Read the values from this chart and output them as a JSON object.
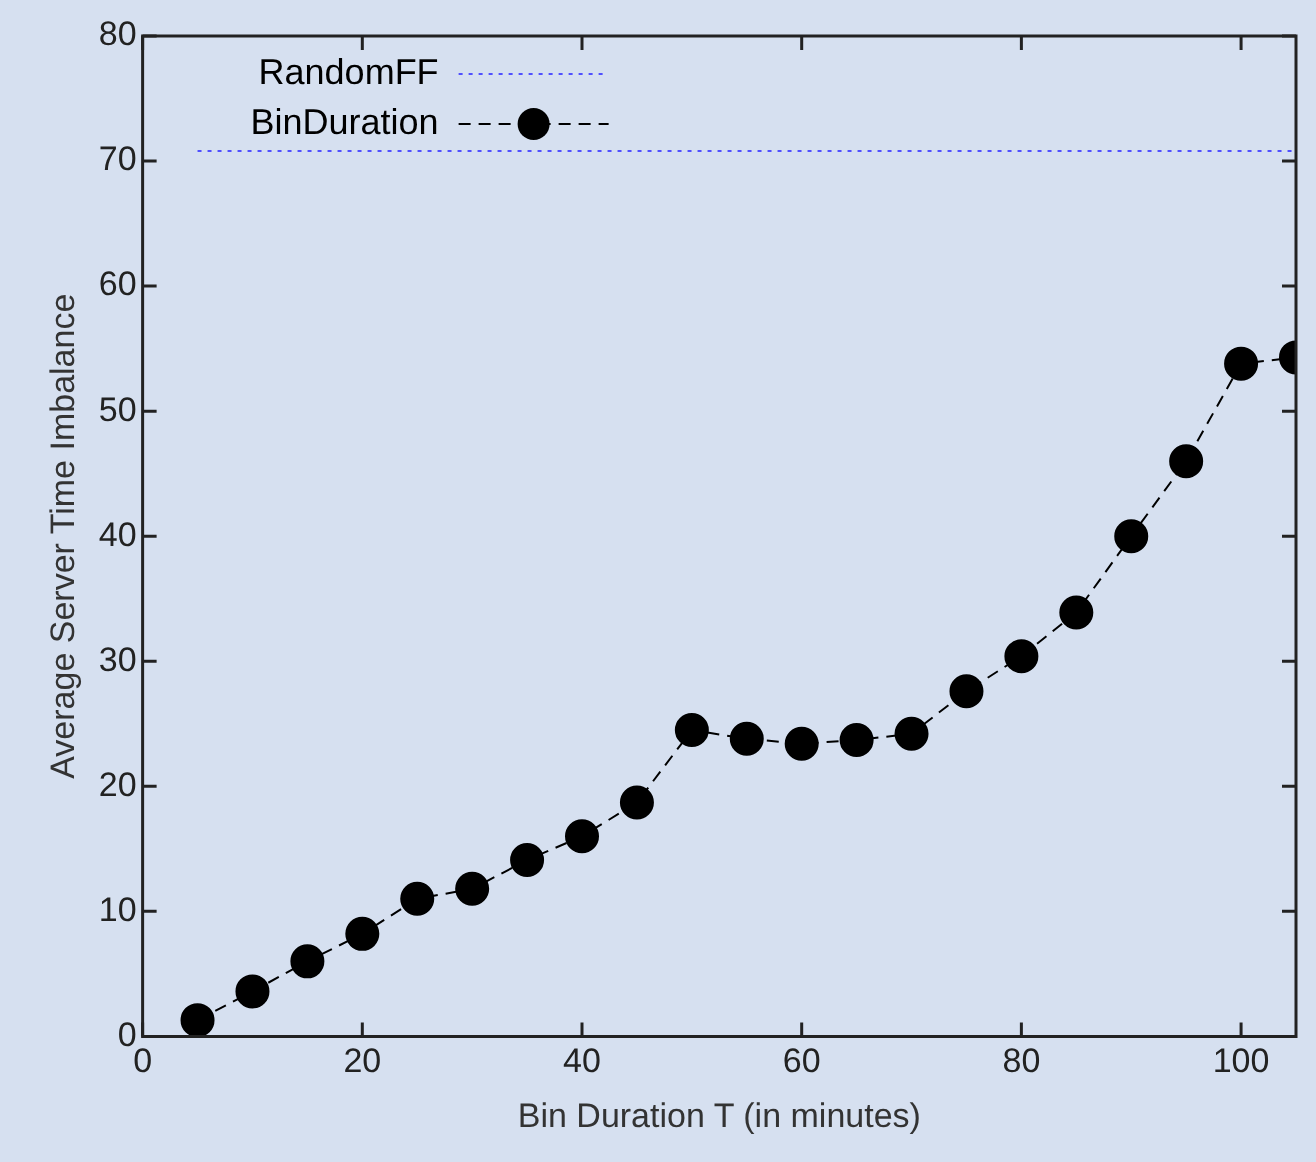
{
  "chart_data": {
    "type": "line",
    "xlabel": "Bin Duration T (in minutes)",
    "ylabel": "Average Server Time Imbalance",
    "xlim": [
      0,
      105
    ],
    "xticks": [
      0,
      20,
      40,
      60,
      80,
      100
    ],
    "ylim": [
      0,
      80
    ],
    "yticks": [
      0,
      10,
      20,
      30,
      40,
      50,
      60,
      70,
      80
    ],
    "grid": false,
    "legend": "top left",
    "series": [
      {
        "name": "RandomFF",
        "color": "#5050ff",
        "x": [
          5,
          105
        ],
        "values": [
          70.8,
          70.8
        ],
        "marker": "none",
        "line_style": "dotted"
      },
      {
        "name": "BinDuration",
        "color": "#000000",
        "x": [
          5,
          10,
          15,
          20,
          25,
          30,
          35,
          40,
          45,
          50,
          55,
          60,
          65,
          70,
          75,
          80,
          85,
          90,
          95,
          100,
          105
        ],
        "values": [
          1.3,
          3.6,
          6,
          8.2,
          11,
          11.8,
          14.1,
          16,
          18.7,
          24.5,
          23.8,
          23.4,
          23.7,
          24.2,
          27.6,
          30.4,
          33.9,
          40,
          46,
          53.8,
          54.3
        ],
        "marker": "circle",
        "line_style": "dashed"
      }
    ]
  }
}
